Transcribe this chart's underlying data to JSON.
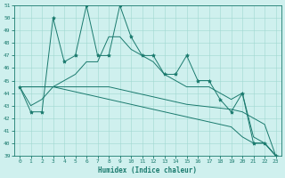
{
  "xlabel": "Humidex (Indice chaleur)",
  "x": [
    0,
    1,
    2,
    3,
    4,
    5,
    6,
    7,
    8,
    9,
    10,
    11,
    12,
    13,
    14,
    15,
    16,
    17,
    18,
    19,
    20,
    21,
    22,
    23
  ],
  "y_jagged": [
    44.5,
    42.5,
    42.5,
    50.0,
    46.5,
    47.0,
    51.0,
    47.0,
    47.0,
    51.0,
    48.5,
    47.0,
    47.0,
    45.5,
    45.5,
    47.0,
    45.0,
    45.0,
    43.5,
    42.5,
    44.0,
    40.0,
    40.0,
    39.0
  ],
  "y_smooth": [
    44.5,
    43.0,
    43.5,
    44.5,
    45.0,
    45.5,
    46.5,
    46.5,
    48.5,
    48.5,
    47.5,
    47.0,
    46.5,
    45.5,
    45.0,
    44.5,
    44.5,
    44.5,
    44.0,
    43.5,
    44.0,
    40.5,
    40.0,
    39.0
  ],
  "y_trend_upper": [
    44.5,
    44.5,
    44.5,
    44.5,
    44.5,
    44.5,
    44.5,
    44.5,
    44.5,
    44.3,
    44.1,
    43.9,
    43.7,
    43.5,
    43.3,
    43.1,
    43.0,
    42.9,
    42.8,
    42.7,
    42.5,
    42.0,
    41.5,
    39.0
  ],
  "y_trend_lower": [
    44.5,
    44.5,
    44.5,
    44.5,
    44.3,
    44.1,
    43.9,
    43.7,
    43.5,
    43.3,
    43.1,
    42.9,
    42.7,
    42.5,
    42.3,
    42.1,
    41.9,
    41.7,
    41.5,
    41.3,
    40.5,
    40.0,
    40.0,
    39.0
  ],
  "bg_color": "#cff0ee",
  "line_color": "#1a7a6e",
  "grid_color": "#a0d8d0",
  "ylim_min": 39,
  "ylim_max": 51,
  "yticks": [
    39,
    40,
    41,
    42,
    43,
    44,
    45,
    46,
    47,
    48,
    49,
    50,
    51
  ],
  "xticks": [
    0,
    1,
    2,
    3,
    4,
    5,
    6,
    7,
    8,
    9,
    10,
    11,
    12,
    13,
    14,
    15,
    16,
    17,
    18,
    19,
    20,
    21,
    22,
    23
  ]
}
